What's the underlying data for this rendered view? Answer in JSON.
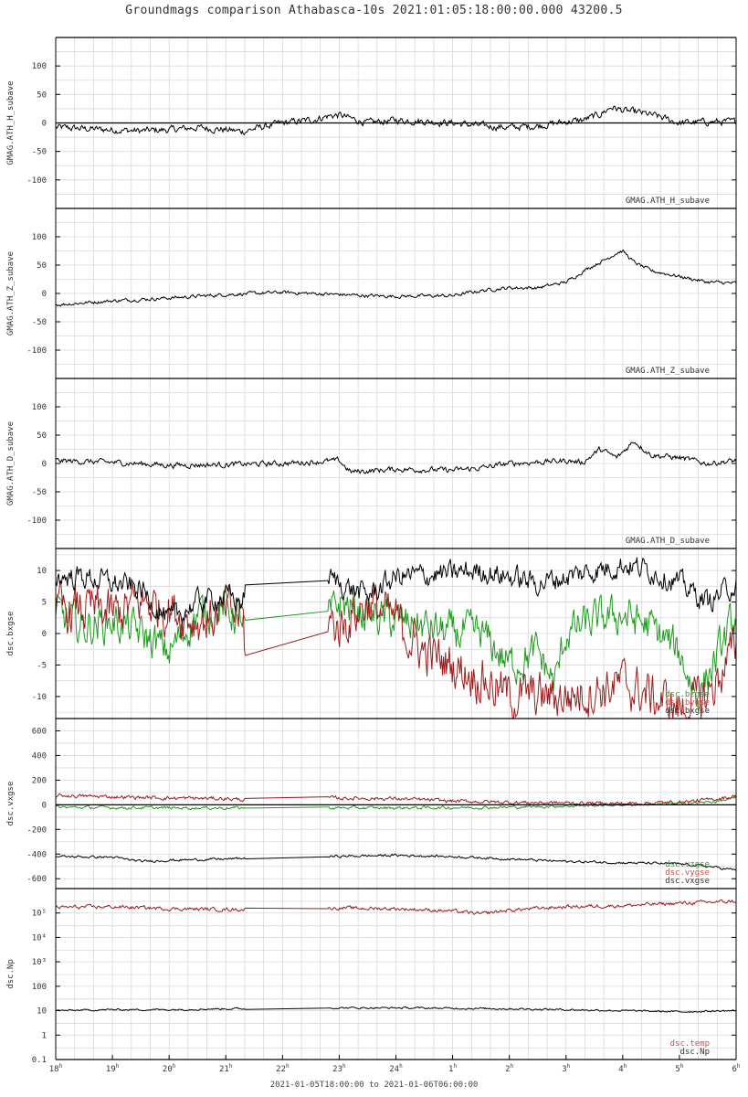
{
  "title": "Groundmags comparison Athabasca-10s 2021:01:05:18:00:00.000 43200.5",
  "footer": "2021-01-05T18:00:00 to 2021-01-06T06:00:00",
  "colors": {
    "black": "#000000",
    "red": "#9b1c1c",
    "green": "#1f9a1f",
    "grid": "#d8d8d8",
    "label_red": "#c05050",
    "label_green": "#30a030"
  },
  "x_ticks": [
    {
      "hour": "18",
      "sup": "h"
    },
    {
      "hour": "19",
      "sup": "h"
    },
    {
      "hour": "20",
      "sup": "h"
    },
    {
      "hour": "21",
      "sup": "h"
    },
    {
      "hour": "22",
      "sup": "h"
    },
    {
      "hour": "23",
      "sup": "h"
    },
    {
      "hour": "24",
      "sup": "h"
    },
    {
      "hour": "1",
      "sup": "h"
    },
    {
      "hour": "2",
      "sup": "h"
    },
    {
      "hour": "3",
      "sup": "h"
    },
    {
      "hour": "4",
      "sup": "h"
    },
    {
      "hour": "5",
      "sup": "h"
    },
    {
      "hour": "6",
      "sup": "h"
    }
  ],
  "chart_data": [
    {
      "type": "line",
      "ylabel": "GMAG.ATH_H_subave",
      "ylim": [
        -150,
        150
      ],
      "yticks": [
        "100",
        "50",
        "0",
        "-50",
        "-100"
      ],
      "ytick_values": [
        100,
        50,
        0,
        -50,
        -100
      ],
      "zero_line": true,
      "legend": [
        "GMAG.ATH_H_subave"
      ],
      "series": [
        {
          "name": "GMAG.ATH_H_subave",
          "color": "black",
          "x": [
            0,
            0.5,
            1,
            1.5,
            2,
            2.5,
            3,
            3.3,
            3.6,
            4,
            4.5,
            4.8,
            5,
            5.2,
            5.5,
            6,
            6.5,
            7,
            7.5,
            8,
            8.5,
            9,
            9.3,
            9.6,
            9.8,
            10,
            10.3,
            10.6,
            11,
            11.5,
            12
          ],
          "y": [
            -8,
            -10,
            -12,
            -14,
            -12,
            -8,
            -12,
            -15,
            -8,
            0,
            5,
            12,
            14,
            8,
            0,
            5,
            3,
            0,
            -5,
            -8,
            -5,
            2,
            5,
            15,
            28,
            22,
            18,
            12,
            0,
            2,
            2
          ],
          "noise": 5
        }
      ]
    },
    {
      "type": "line",
      "ylabel": "GMAG.ATH_Z_subave",
      "ylim": [
        -150,
        150
      ],
      "yticks": [
        "100",
        "50",
        "0",
        "-50",
        "-100"
      ],
      "ytick_values": [
        100,
        50,
        0,
        -50,
        -100
      ],
      "zero_line": false,
      "legend": [
        "GMAG.ATH_Z_subave"
      ],
      "series": [
        {
          "name": "GMAG.ATH_Z_subave",
          "color": "black",
          "x": [
            0,
            1,
            2,
            3,
            4,
            5,
            5.5,
            6,
            7,
            7.5,
            8,
            8.5,
            9,
            9.4,
            9.7,
            9.9,
            10,
            10.2,
            10.5,
            11,
            11.5,
            12
          ],
          "y": [
            -20,
            -13,
            -8,
            -2,
            2,
            -2,
            -4,
            -5,
            -4,
            5,
            10,
            10,
            20,
            45,
            60,
            72,
            75,
            55,
            40,
            30,
            20,
            18
          ],
          "noise": 2.5
        }
      ]
    },
    {
      "type": "line",
      "ylabel": "GMAG.ATH_D_subave",
      "ylim": [
        -150,
        150
      ],
      "yticks": [
        "100",
        "50",
        "0",
        "-50",
        "-100"
      ],
      "ytick_values": [
        100,
        50,
        0,
        -50,
        -100
      ],
      "zero_line": false,
      "legend": [
        "GMAG.ATH_D_subave"
      ],
      "series": [
        {
          "name": "GMAG.ATH_D_subave",
          "color": "black",
          "x": [
            0,
            1,
            2,
            3,
            4,
            5,
            5.2,
            6,
            7,
            7.5,
            8,
            9,
            9.3,
            9.6,
            9.9,
            10.2,
            10.5,
            11,
            11.5,
            12
          ],
          "y": [
            5,
            2,
            -3,
            -2,
            0,
            5,
            -15,
            -10,
            -12,
            -8,
            0,
            5,
            2,
            25,
            10,
            40,
            15,
            10,
            0,
            5
          ],
          "noise": 4
        }
      ]
    },
    {
      "type": "line",
      "ylabel": "dsc.bxgse",
      "ylim": [
        -13.5,
        13.5
      ],
      "yticks": [
        "10",
        "5",
        "0",
        "-5",
        "-10"
      ],
      "ytick_values": [
        10,
        5,
        0,
        -5,
        -10
      ],
      "zero_line": false,
      "legend": [
        "dsc.bzgse",
        "dsc.bygse",
        "dsc.bxgse"
      ],
      "gap": [
        3.35,
        4.8
      ],
      "series": [
        {
          "name": "dsc.bzgse",
          "color": "green",
          "x": [
            0,
            0.5,
            1,
            1.5,
            2,
            2.5,
            3,
            3.3,
            3.35,
            4.8,
            5,
            5.5,
            6,
            7,
            7.5,
            8,
            8.5,
            8.8,
            9,
            9.5,
            10,
            10.5,
            11,
            11.3,
            11.6,
            12
          ],
          "y": [
            3,
            1,
            2,
            0,
            -3,
            3,
            4,
            2,
            0,
            2,
            5,
            3,
            2,
            0,
            0,
            -5,
            -3,
            -8,
            0,
            2,
            3,
            1,
            -3,
            -10,
            -5,
            3
          ],
          "noise": 2.5
        },
        {
          "name": "dsc.bygse",
          "color": "red",
          "x": [
            0,
            0.5,
            1,
            1.5,
            2,
            2.5,
            3,
            3.3,
            3.35,
            4.8,
            5,
            5.5,
            6,
            6.5,
            7,
            7.5,
            8,
            8.5,
            9,
            9.5,
            10,
            10.5,
            11,
            11.5,
            12
          ],
          "y": [
            3,
            4,
            3,
            5,
            4,
            2,
            3,
            3,
            -5,
            2,
            1,
            5,
            2,
            -3,
            -5,
            -7,
            -10,
            -10,
            -10,
            -9,
            -8,
            -10,
            -12,
            -10,
            -2
          ],
          "noise": 3
        },
        {
          "name": "dsc.bxgse",
          "color": "black",
          "x": [
            0,
            0.5,
            1,
            1.5,
            2,
            2.5,
            3,
            3.3,
            3.35,
            4.8,
            5,
            5.5,
            6,
            7,
            7.5,
            8,
            8.5,
            9,
            9.5,
            10,
            10.5,
            11,
            11.5,
            12
          ],
          "y": [
            9,
            9,
            8,
            7,
            2,
            5,
            6,
            5,
            7,
            9,
            8,
            6,
            9,
            9.5,
            10,
            9,
            8,
            9,
            10,
            11,
            10,
            8,
            5,
            8
          ],
          "noise": 1.5
        }
      ]
    },
    {
      "type": "line",
      "ylabel": "dsc.vxgse",
      "ylim": [
        -680,
        700
      ],
      "yticks": [
        "600",
        "400",
        "200",
        "0",
        "-200",
        "-400",
        "-600"
      ],
      "ytick_values": [
        600,
        400,
        200,
        0,
        -200,
        -400,
        -600
      ],
      "zero_line": true,
      "legend": [
        "dsc.vzgse",
        "dsc.vygse",
        "dsc.vxgse"
      ],
      "gap": [
        3.35,
        4.8
      ],
      "series": [
        {
          "name": "dsc.vzgse",
          "color": "green",
          "x": [
            0,
            2,
            3.35,
            6,
            8,
            10,
            11,
            11.5,
            12
          ],
          "y": [
            -20,
            -25,
            -25,
            -25,
            -20,
            0,
            10,
            20,
            50
          ],
          "noise": 10
        },
        {
          "name": "dsc.vygse",
          "color": "red",
          "x": [
            0,
            1,
            2,
            3,
            3.35,
            4.8,
            6,
            7,
            8,
            9,
            10,
            11,
            11.5,
            12
          ],
          "y": [
            75,
            65,
            55,
            50,
            40,
            55,
            50,
            30,
            20,
            15,
            10,
            20,
            40,
            70
          ],
          "noise": 12
        },
        {
          "name": "dsc.vxgse",
          "color": "black",
          "x": [
            0,
            1,
            1.5,
            2,
            3,
            3.35,
            4.8,
            6,
            7,
            8,
            9,
            10,
            11,
            11.5,
            12
          ],
          "y": [
            -420,
            -425,
            -460,
            -450,
            -440,
            -435,
            -420,
            -410,
            -420,
            -440,
            -460,
            -470,
            -480,
            -500,
            -530
          ],
          "noise": 8
        }
      ]
    },
    {
      "type": "line",
      "ylabel": "dsc.Np",
      "yscale": "log",
      "ylim": [
        0.1,
        1000000
      ],
      "yticks": [
        "10⁵",
        "10⁴",
        "10³",
        "100",
        "10",
        "1",
        "0.1"
      ],
      "ytick_values": [
        100000,
        10000,
        1000,
        100,
        10,
        1,
        0.1
      ],
      "zero_line": false,
      "legend": [
        "dsc.temp",
        "dsc.Np"
      ],
      "gap": [
        3.35,
        4.8
      ],
      "series": [
        {
          "name": "dsc.temp",
          "color": "red",
          "x": [
            0,
            1,
            2,
            3,
            3.35,
            4.8,
            6,
            7,
            7.5,
            8,
            9,
            10,
            11,
            12
          ],
          "y": [
            170000,
            180000,
            150000,
            140000,
            140000,
            160000,
            150000,
            120000,
            90000,
            130000,
            180000,
            200000,
            250000,
            300000
          ],
          "noise": 0.06
        },
        {
          "name": "dsc.Np",
          "color": "black",
          "x": [
            0,
            1,
            2,
            3,
            3.35,
            4.8,
            6,
            8,
            10,
            11,
            12
          ],
          "y": [
            10,
            11,
            11,
            12,
            12,
            13,
            13,
            12,
            10,
            9,
            10
          ],
          "noise": 0.03
        }
      ]
    }
  ]
}
